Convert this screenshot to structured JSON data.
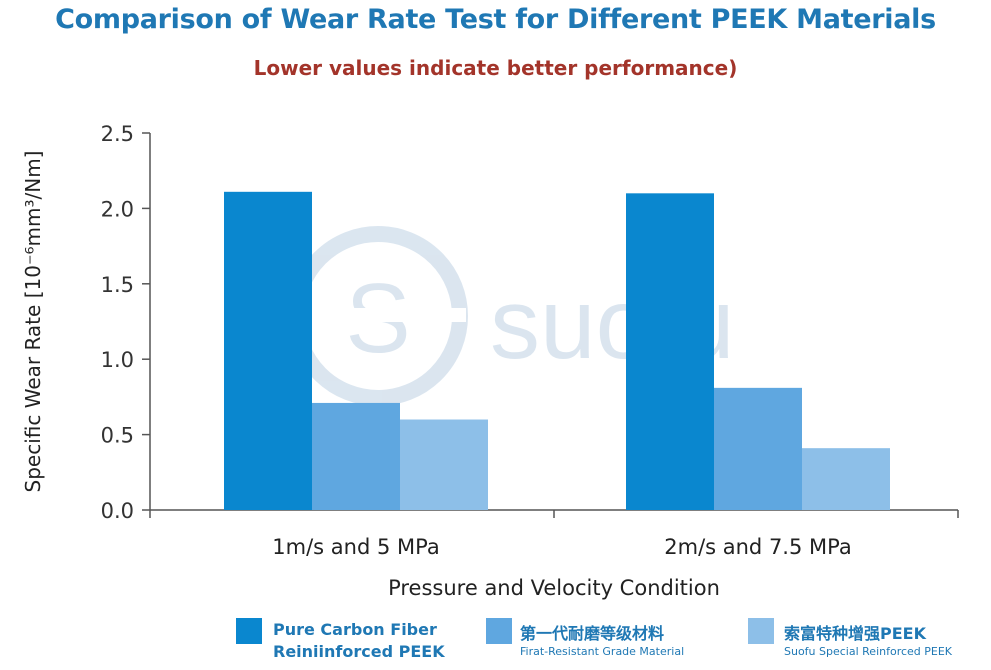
{
  "title": "Comparison of Wear Rate Test for Different PEEK Materials",
  "subtitle": "Lower values indicate better performance)",
  "watermark": "suofu",
  "legend": [
    {
      "line1": "Pure Carbon Fiber",
      "line2": "Reiniinforced PEEK"
    },
    {
      "line1": "第一代耐磨等级材料",
      "line2": "Firat-Resistant Grade Material"
    },
    {
      "line1": "索富特种增强PEEK",
      "line2": "Suofu Special Reinforced PEEK"
    }
  ],
  "chart_data": {
    "type": "bar",
    "title": "Comparison of Wear Rate Test for Different PEEK Materials",
    "subtitle": "Lower values indicate better performance)",
    "xlabel": "Pressure and Velocity Condition",
    "ylabel": "Specific Wear Rate [10⁻⁶mm³/Nm]",
    "categories": [
      "1m/s and 5 MPa",
      "2m/s and 7.5 MPa"
    ],
    "series": [
      {
        "name": "Pure Carbon Fiber Reiniinforced PEEK",
        "values": [
          2.11,
          2.1
        ],
        "color": "#0a87cf"
      },
      {
        "name": "第一代耐磨等级材料 Firat-Resistant Grade Material",
        "values": [
          0.71,
          0.81
        ],
        "color": "#5fa7e0"
      },
      {
        "name": "索富特种增强PEEK Suofu Special Reinforced PEEK",
        "values": [
          0.6,
          0.41
        ],
        "color": "#8dbfe8"
      }
    ],
    "ylim": [
      0,
      2.5
    ],
    "yticks": [
      "0.0",
      "0.5",
      "1.0",
      "1.5",
      "2.0",
      "2.5"
    ],
    "grid": false,
    "legend_position": "bottom"
  }
}
